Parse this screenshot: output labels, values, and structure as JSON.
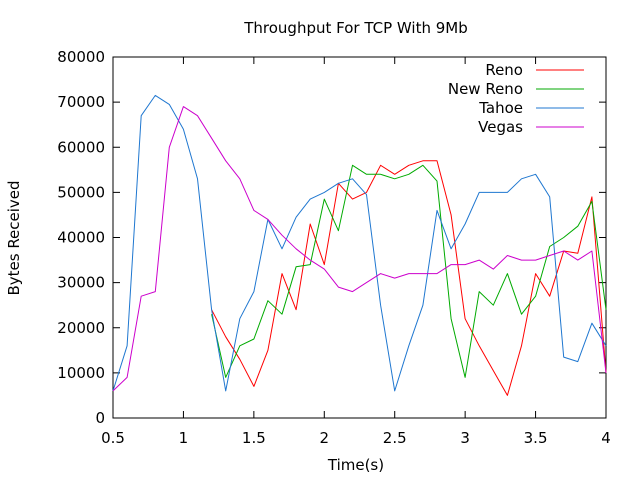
{
  "chart_data": {
    "type": "line",
    "title": "Throughput For TCP With 9Mb",
    "xlabel": "Time(s)",
    "ylabel": "Bytes Received",
    "xlim": [
      0.5,
      4
    ],
    "ylim": [
      0,
      80000
    ],
    "xticks": [
      "0.5",
      "1",
      "1.5",
      "2",
      "2.5",
      "3",
      "3.5",
      "4"
    ],
    "yticks": [
      "0",
      "10000",
      "20000",
      "30000",
      "40000",
      "50000",
      "60000",
      "70000",
      "80000"
    ],
    "grid": false,
    "legend_position": "top-right",
    "series": [
      {
        "name": "Reno",
        "color": "#ff0000",
        "x": [
          1.2,
          1.3,
          1.4,
          1.5,
          1.6,
          1.7,
          1.8,
          1.9,
          2.0,
          2.1,
          2.2,
          2.3,
          2.4,
          2.5,
          2.6,
          2.7,
          2.8,
          2.9,
          3.0,
          3.1,
          3.2,
          3.3,
          3.4,
          3.5,
          3.6,
          3.7,
          3.8,
          3.9,
          4.0
        ],
        "y": [
          24000,
          18000,
          13000,
          7000,
          15000,
          32000,
          24000,
          43000,
          34000,
          52000,
          48500,
          50000,
          56000,
          54000,
          56000,
          57000,
          57000,
          45000,
          22000,
          16000,
          10500,
          5000,
          16000,
          32000,
          27000,
          37000,
          36500,
          49000,
          10000
        ]
      },
      {
        "name": "New Reno",
        "color": "#00aa00",
        "x": [
          1.2,
          1.3,
          1.4,
          1.5,
          1.6,
          1.7,
          1.8,
          1.9,
          2.0,
          2.1,
          2.2,
          2.3,
          2.4,
          2.5,
          2.6,
          2.7,
          2.8,
          2.9,
          3.0,
          3.1,
          3.2,
          3.3,
          3.4,
          3.5,
          3.6,
          3.7,
          3.8,
          3.9,
          4.0
        ],
        "y": [
          23000,
          9000,
          16000,
          17500,
          26000,
          23000,
          33500,
          34000,
          48500,
          41500,
          56000,
          54000,
          54000,
          53000,
          54000,
          56000,
          52500,
          22000,
          9000,
          28000,
          25000,
          32000,
          23000,
          27000,
          38000,
          40000,
          42500,
          48000,
          24000
        ]
      },
      {
        "name": "Tahoe",
        "color": "#1f77d0",
        "x": [
          0.5,
          0.6,
          0.7,
          0.8,
          0.9,
          1.0,
          1.1,
          1.2,
          1.3,
          1.4,
          1.5,
          1.6,
          1.7,
          1.8,
          1.9,
          2.0,
          2.1,
          2.2,
          2.3,
          2.4,
          2.5,
          2.6,
          2.7,
          2.8,
          2.9,
          3.0,
          3.1,
          3.2,
          3.3,
          3.4,
          3.5,
          3.6,
          3.7,
          3.8,
          3.9,
          4.0
        ],
        "y": [
          6000,
          16000,
          67000,
          71500,
          69500,
          64000,
          53000,
          24000,
          6000,
          22000,
          28000,
          44000,
          37500,
          44500,
          48500,
          50000,
          52000,
          53000,
          49500,
          25000,
          6000,
          16000,
          25000,
          46000,
          37500,
          43000,
          50000,
          50000,
          50000,
          53000,
          54000,
          49000,
          13500,
          12500,
          21000,
          16000
        ]
      },
      {
        "name": "Vegas",
        "color": "#cc00cc",
        "x": [
          0.5,
          0.6,
          0.7,
          0.8,
          0.9,
          1.0,
          1.1,
          1.2,
          1.3,
          1.4,
          1.5,
          1.6,
          1.7,
          1.8,
          1.9,
          2.0,
          2.1,
          2.2,
          2.3,
          2.4,
          2.5,
          2.6,
          2.7,
          2.8,
          2.9,
          3.0,
          3.1,
          3.2,
          3.3,
          3.4,
          3.5,
          3.6,
          3.7,
          3.8,
          3.9,
          4.0
        ],
        "y": [
          6000,
          9000,
          27000,
          28000,
          60000,
          69000,
          67000,
          62000,
          57000,
          53000,
          46000,
          44000,
          40500,
          37500,
          35000,
          33000,
          29000,
          28000,
          30000,
          32000,
          31000,
          32000,
          32000,
          32000,
          34000,
          34000,
          35000,
          33000,
          36000,
          35000,
          35000,
          36000,
          37000,
          35000,
          37000,
          10000
        ]
      }
    ]
  }
}
